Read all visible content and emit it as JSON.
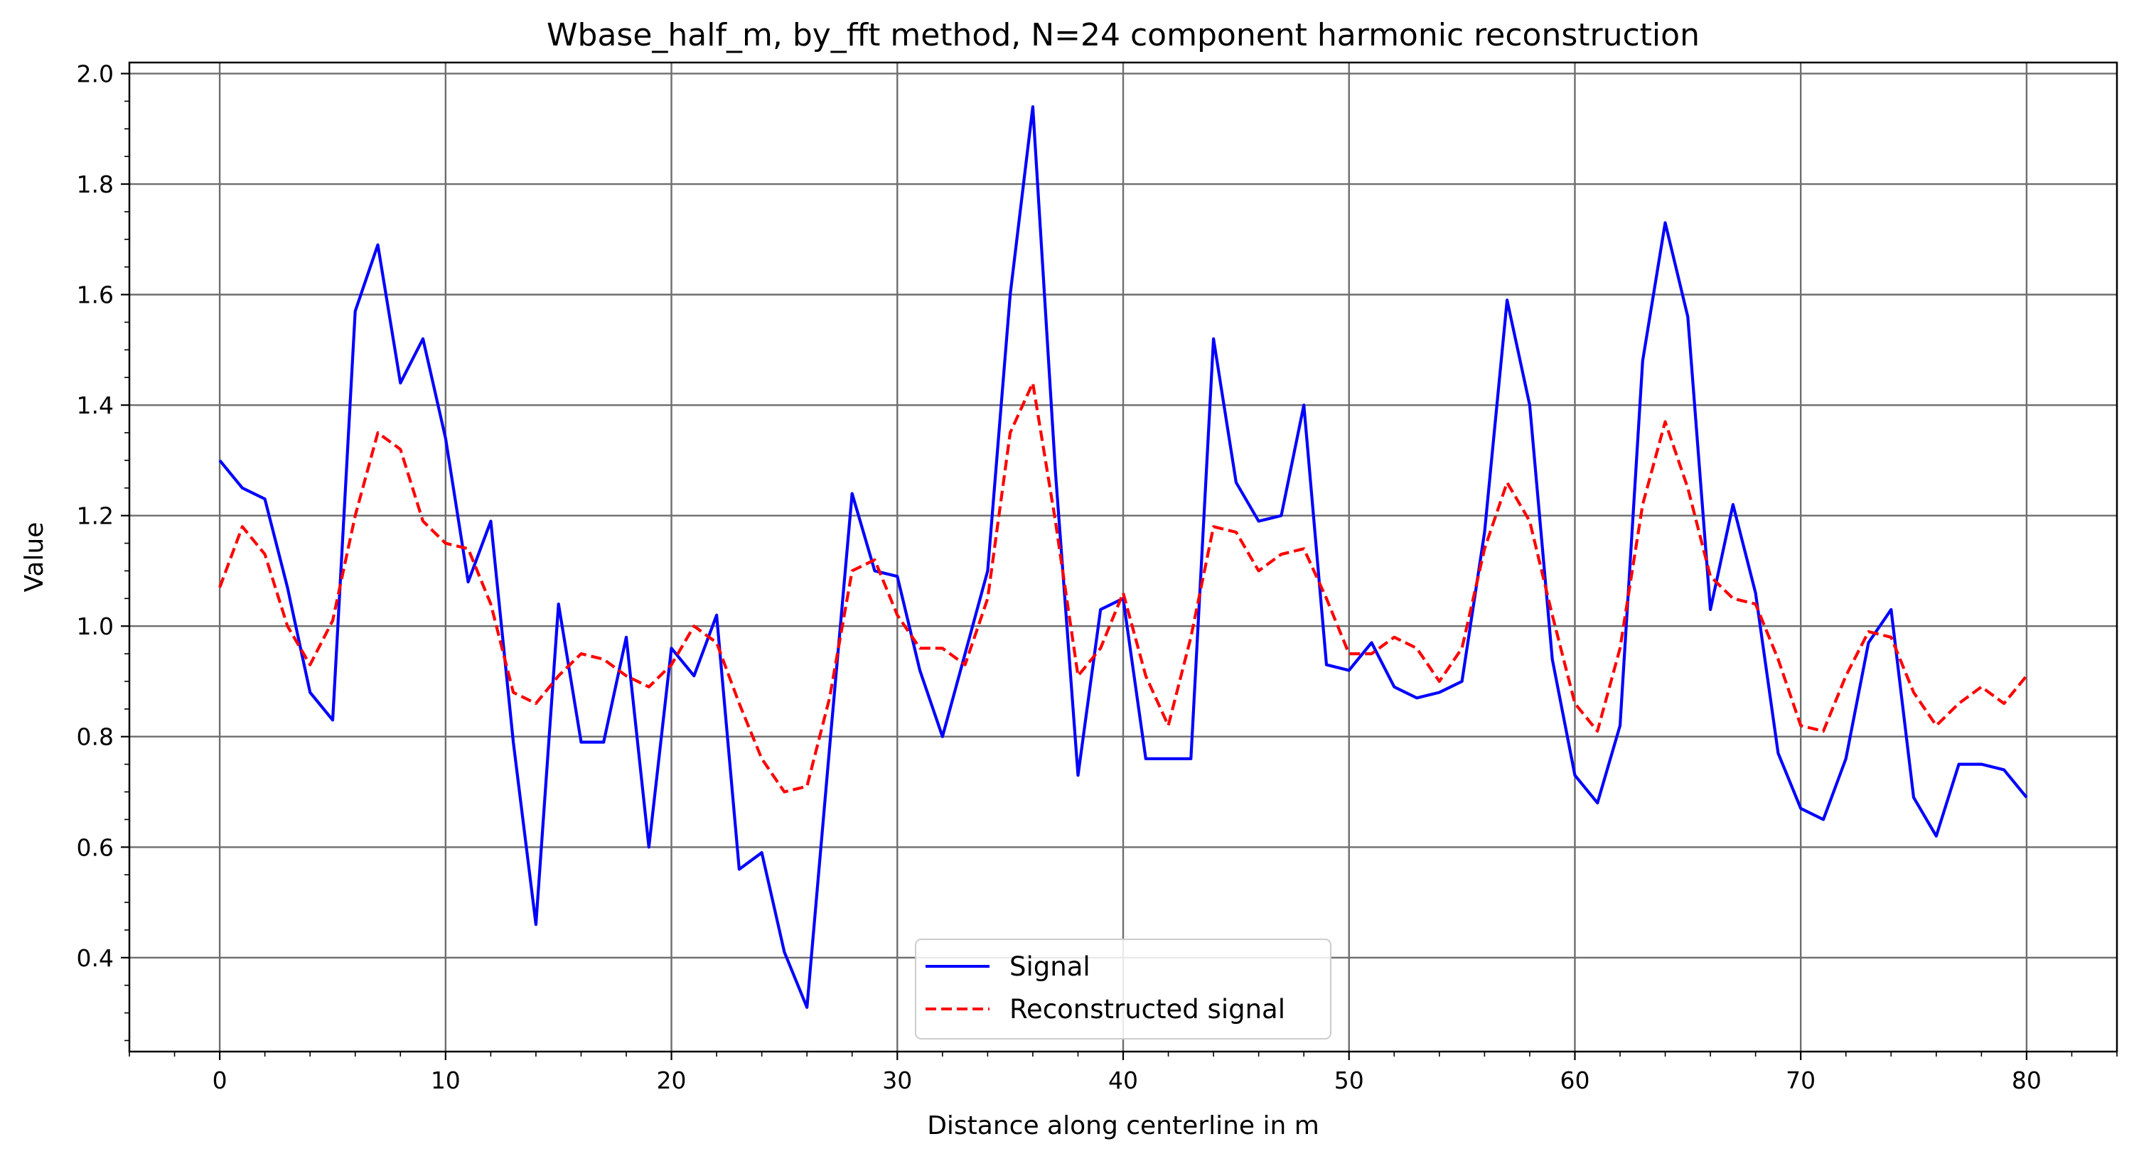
{
  "chart_data": {
    "type": "line",
    "title": "Wbase_half_m, by_fft method, N=24 component harmonic reconstruction",
    "xlabel": "Distance along centerline in m",
    "ylabel": "Value",
    "xlim": [
      -4,
      84
    ],
    "ylim": [
      0.23,
      2.02
    ],
    "xticks": [
      0,
      10,
      20,
      30,
      40,
      50,
      60,
      70,
      80
    ],
    "yticks": [
      0.4,
      0.6,
      0.8,
      1.0,
      1.2,
      1.4,
      1.6,
      1.8,
      2.0
    ],
    "xtick_labels": [
      "0",
      "10",
      "20",
      "30",
      "40",
      "50",
      "60",
      "70",
      "80"
    ],
    "ytick_labels": [
      "0.4",
      "0.6",
      "0.8",
      "1.0",
      "1.2",
      "1.4",
      "1.6",
      "1.8",
      "2.0"
    ],
    "grid": true,
    "legend_position": "bottom-center",
    "x": [
      0,
      1,
      2,
      3,
      4,
      5,
      6,
      7,
      8,
      9,
      10,
      11,
      12,
      13,
      14,
      15,
      16,
      17,
      18,
      19,
      20,
      21,
      22,
      23,
      24,
      25,
      26,
      27,
      28,
      29,
      30,
      31,
      32,
      33,
      34,
      35,
      36,
      37,
      38,
      39,
      40,
      41,
      42,
      43,
      44,
      45,
      46,
      47,
      48,
      49,
      50,
      51,
      52,
      53,
      54,
      55,
      56,
      57,
      58,
      59,
      60,
      61,
      62,
      63,
      64,
      65,
      66,
      67,
      68,
      69,
      70,
      71,
      72,
      73,
      74,
      75,
      76,
      77,
      78,
      79,
      80
    ],
    "series": [
      {
        "name": "Signal",
        "color": "#0000ff",
        "style": "solid",
        "values": [
          1.3,
          1.25,
          1.23,
          1.07,
          0.88,
          0.83,
          1.57,
          1.69,
          1.44,
          1.52,
          1.34,
          1.08,
          1.19,
          0.79,
          0.46,
          1.04,
          0.79,
          0.79,
          0.98,
          0.6,
          0.96,
          0.91,
          1.02,
          0.56,
          0.59,
          0.41,
          0.31,
          0.78,
          1.24,
          1.1,
          1.09,
          0.92,
          0.8,
          0.95,
          1.1,
          1.6,
          1.94,
          1.28,
          0.73,
          1.03,
          1.05,
          0.76,
          0.76,
          0.76,
          1.52,
          1.26,
          1.19,
          1.2,
          1.4,
          0.93,
          0.92,
          0.97,
          0.89,
          0.87,
          0.88,
          0.9,
          1.17,
          1.59,
          1.4,
          0.94,
          0.73,
          0.68,
          0.82,
          1.48,
          1.73,
          1.56,
          1.03,
          1.22,
          1.06,
          0.77,
          0.67,
          0.65,
          0.76,
          0.97,
          1.03,
          0.69,
          0.62,
          0.75,
          0.75,
          0.74,
          0.69
        ]
      },
      {
        "name": "Reconstructed signal",
        "color": "#ff0000",
        "style": "dashed",
        "values": [
          1.07,
          1.18,
          1.13,
          1.0,
          0.93,
          1.01,
          1.2,
          1.35,
          1.32,
          1.19,
          1.15,
          1.14,
          1.04,
          0.88,
          0.86,
          0.91,
          0.95,
          0.94,
          0.91,
          0.89,
          0.93,
          1.0,
          0.97,
          0.86,
          0.76,
          0.7,
          0.71,
          0.87,
          1.1,
          1.12,
          1.02,
          0.96,
          0.96,
          0.93,
          1.05,
          1.35,
          1.44,
          1.19,
          0.91,
          0.96,
          1.06,
          0.91,
          0.82,
          0.98,
          1.18,
          1.17,
          1.1,
          1.13,
          1.14,
          1.05,
          0.95,
          0.95,
          0.98,
          0.96,
          0.9,
          0.96,
          1.14,
          1.26,
          1.19,
          1.02,
          0.86,
          0.81,
          0.96,
          1.22,
          1.37,
          1.25,
          1.09,
          1.05,
          1.04,
          0.94,
          0.82,
          0.81,
          0.91,
          0.99,
          0.98,
          0.88,
          0.82,
          0.86,
          0.89,
          0.86,
          0.91
        ]
      }
    ]
  }
}
